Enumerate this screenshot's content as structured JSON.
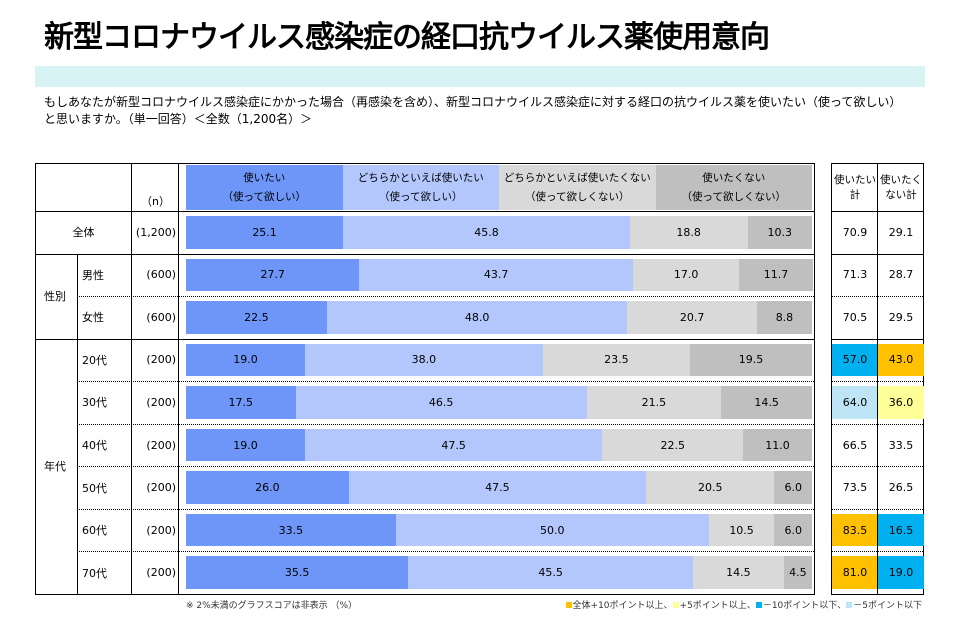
{
  "title": "新型コロナウイルス感染症の経口抗ウイルス薬使用意向",
  "question": "もしあなたが新型コロナウイルス感染症にかかった場合（再感染を含め）、新型コロナウイルス感染症に対する経口の抗ウイルス薬を使いたい（使って欲しい）と思いますか。（単一回答）＜全数（1,200名）＞",
  "n_header": "（n）",
  "summary_headers": [
    [
      "使いたい",
      "計"
    ],
    [
      "使いたく",
      "ない計"
    ]
  ],
  "note": "※ 2%未満のグラフスコアは非表示 （%）",
  "legend": [
    {
      "label": "全体+10ポイント以上、",
      "color": "#ffc000"
    },
    {
      "label": "+5ポイント以上、",
      "color": "#ffff99"
    },
    {
      "label": "－10ポイント以下、",
      "color": "#00b0f0"
    },
    {
      "label": "－5ポイント以下",
      "color": "#bde5f5"
    }
  ],
  "chart_data": {
    "type": "bar",
    "stacked": true,
    "orientation": "horizontal",
    "series": [
      {
        "name": "使いたい（使って欲しい）",
        "color": "#6e96f9",
        "values": [
          25.1,
          27.7,
          22.5,
          19.0,
          17.5,
          19.0,
          26.0,
          33.5,
          35.5
        ]
      },
      {
        "name": "どちらかといえば使いたい（使って欲しい）",
        "color": "#b4c7fc",
        "values": [
          45.8,
          43.7,
          48.0,
          38.0,
          46.5,
          47.5,
          47.5,
          50.0,
          45.5
        ]
      },
      {
        "name": "どちらかといえば使いたくない（使って欲しくない）",
        "color": "#d9d9d9",
        "values": [
          18.8,
          17.0,
          20.7,
          23.5,
          21.5,
          22.5,
          20.5,
          10.5,
          14.5
        ]
      },
      {
        "name": "使いたくない（使って欲しくない）",
        "color": "#bfbfbf",
        "values": [
          10.3,
          11.7,
          8.8,
          19.5,
          14.5,
          11.0,
          6.0,
          6.0,
          4.5
        ]
      }
    ],
    "series_labels": [
      [
        "使いたい",
        "（使って欲しい）"
      ],
      [
        "どちらかといえば使いたい",
        "（使って欲しい）"
      ],
      [
        "どちらかといえば使いたくない",
        "（使って欲しくない）"
      ],
      [
        "使いたくない",
        "（使って欲しくない）"
      ]
    ],
    "groups": [
      {
        "label": "",
        "rows": [
          0
        ]
      },
      {
        "label": "性別",
        "rows": [
          1,
          2
        ]
      },
      {
        "label": "年代",
        "rows": [
          3,
          4,
          5,
          6,
          7,
          8
        ]
      }
    ],
    "categories": [
      "全体",
      "男性",
      "女性",
      "20代",
      "30代",
      "40代",
      "50代",
      "60代",
      "70代"
    ],
    "n": [
      "(1,200)",
      "(600)",
      "(600)",
      "(200)",
      "(200)",
      "(200)",
      "(200)",
      "(200)",
      "(200)"
    ],
    "use_total": [
      70.9,
      71.3,
      70.5,
      57.0,
      64.0,
      66.5,
      73.5,
      83.5,
      81.0
    ],
    "not_use_total": [
      29.1,
      28.7,
      29.5,
      43.0,
      36.0,
      33.5,
      26.5,
      16.5,
      19.0
    ],
    "use_total_highlight": [
      "",
      "",
      "",
      "#00b0f0",
      "#bde5f5",
      "",
      "",
      "#ffc000",
      "#ffc000"
    ],
    "not_use_total_highlight": [
      "",
      "",
      "",
      "#ffc000",
      "#ffff99",
      "",
      "",
      "#00b0f0",
      "#00b0f0"
    ],
    "unit": "%",
    "xlim": [
      0,
      100
    ]
  }
}
